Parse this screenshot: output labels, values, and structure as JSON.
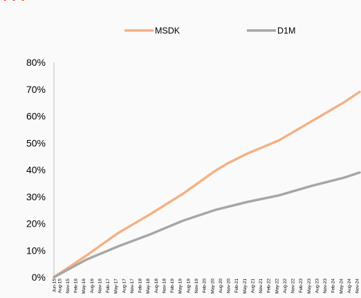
{
  "chart_data": {
    "type": "line",
    "ylim": [
      0,
      0.8
    ],
    "yticks": [
      0,
      0.1,
      0.2,
      0.3,
      0.4,
      0.5,
      0.6,
      0.7,
      0.8
    ],
    "ytick_labels": [
      "0%",
      "10%",
      "20%",
      "30%",
      "40%",
      "50%",
      "60%",
      "70%",
      "80%"
    ],
    "xtick_labels": [
      "Jun-15",
      "Aug-15",
      "Nov-15",
      "Feb-16",
      "May-16",
      "Aug-16",
      "Nov-16",
      "Feb-17",
      "May-17",
      "Aug-17",
      "Nov-17",
      "Feb-18",
      "May-18",
      "Aug-18",
      "Nov-18",
      "Feb-19",
      "May-19",
      "Aug-19",
      "Nov-19",
      "Feb-20",
      "May-20",
      "Aug-20",
      "Nov-20",
      "Feb-21",
      "May-21",
      "Aug-21",
      "Nov-21",
      "Feb-22",
      "May-22",
      "Aug-22",
      "Nov-22",
      "Feb-23",
      "May-23",
      "Aug-23",
      "Nov-23",
      "Feb-24",
      "May-24",
      "Aug-24",
      "Nov-24"
    ],
    "grid": false,
    "legend_position": "top-center",
    "series": [
      {
        "name": "MSDK",
        "color": "#f4b183",
        "x": [
          "Jun-15",
          "Jun-16",
          "Jun-17",
          "Jun-18",
          "Jun-19",
          "Jun-20",
          "Nov-20",
          "Jun-21",
          "Jun-22",
          "Jun-23",
          "Jun-24",
          "Dec-24"
        ],
        "values": [
          0.0,
          0.08,
          0.165,
          0.235,
          0.31,
          0.395,
          0.425,
          0.46,
          0.51,
          0.58,
          0.65,
          0.69
        ]
      },
      {
        "name": "D1M",
        "color": "#a6a6a6",
        "x": [
          "Jun-15",
          "Jun-16",
          "Jun-17",
          "Jun-18",
          "Jun-19",
          "Jun-20",
          "Jun-21",
          "Jun-22",
          "Jun-23",
          "Jun-24",
          "Dec-24"
        ],
        "values": [
          0.0,
          0.065,
          0.115,
          0.16,
          0.21,
          0.25,
          0.28,
          0.305,
          0.34,
          0.37,
          0.39
        ]
      }
    ]
  }
}
